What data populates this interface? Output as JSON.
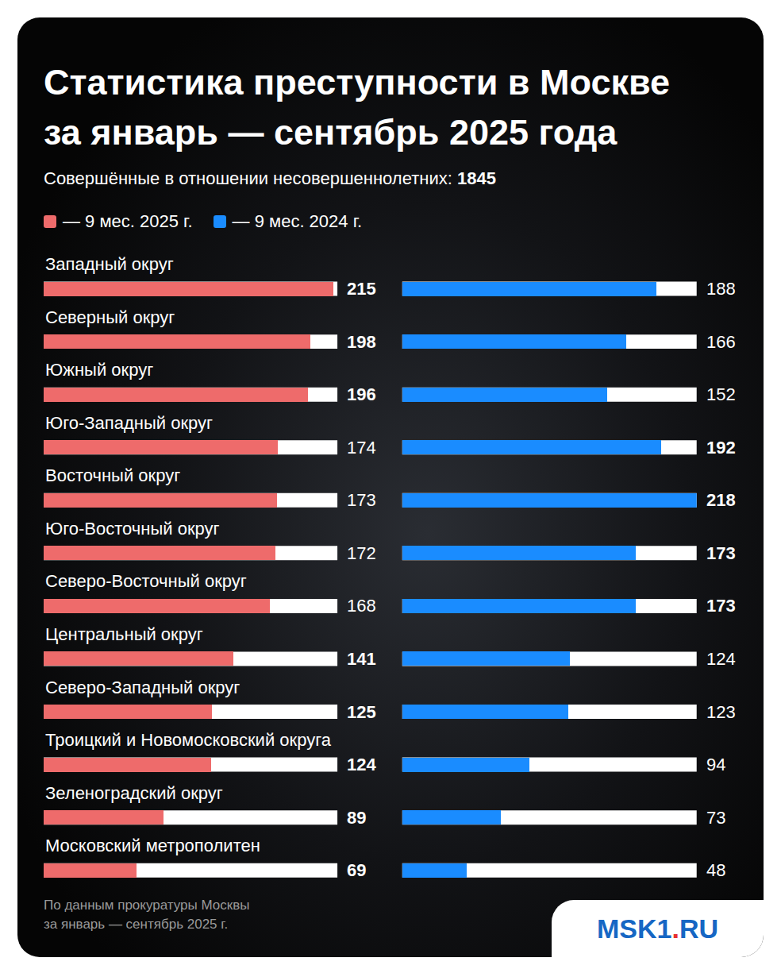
{
  "chart_data": {
    "type": "bar",
    "orientation": "horizontal",
    "title": "Статистика преступности в Москве\nза январь — сентябрь 2025 года",
    "subtitle": "Совершённые в отношении несовершеннолетних: 1845",
    "legend": "top-left",
    "categories": [
      "Западный округ",
      "Северный округ",
      "Южный округ",
      "Юго-Западный округ",
      "Восточный округ",
      "Юго-Восточный округ",
      "Северо-Восточный округ",
      "Центральный округ",
      "Северо-Западный округ",
      "Троицкий и Новомосковский округа",
      "Зеленоградский округ",
      "Московский метрополитен"
    ],
    "series": [
      {
        "name": "— 9 мес. 2025 г.",
        "color": "#ee6b6b",
        "values": [
          215,
          198,
          196,
          174,
          173,
          172,
          168,
          141,
          125,
          124,
          89,
          69
        ]
      },
      {
        "name": "— 9 мес. 2024 г.",
        "color": "#1a8cff",
        "values": [
          188,
          166,
          152,
          192,
          218,
          173,
          173,
          124,
          123,
          94,
          73,
          48
        ]
      }
    ],
    "xlim": [
      0,
      218
    ],
    "data_labels": true,
    "tick_labels": false,
    "grid": false,
    "source": "По данным прокуратуры Москвы\nза январь — сентябрь 2025 г.",
    "logo": "MSK1.RU"
  }
}
